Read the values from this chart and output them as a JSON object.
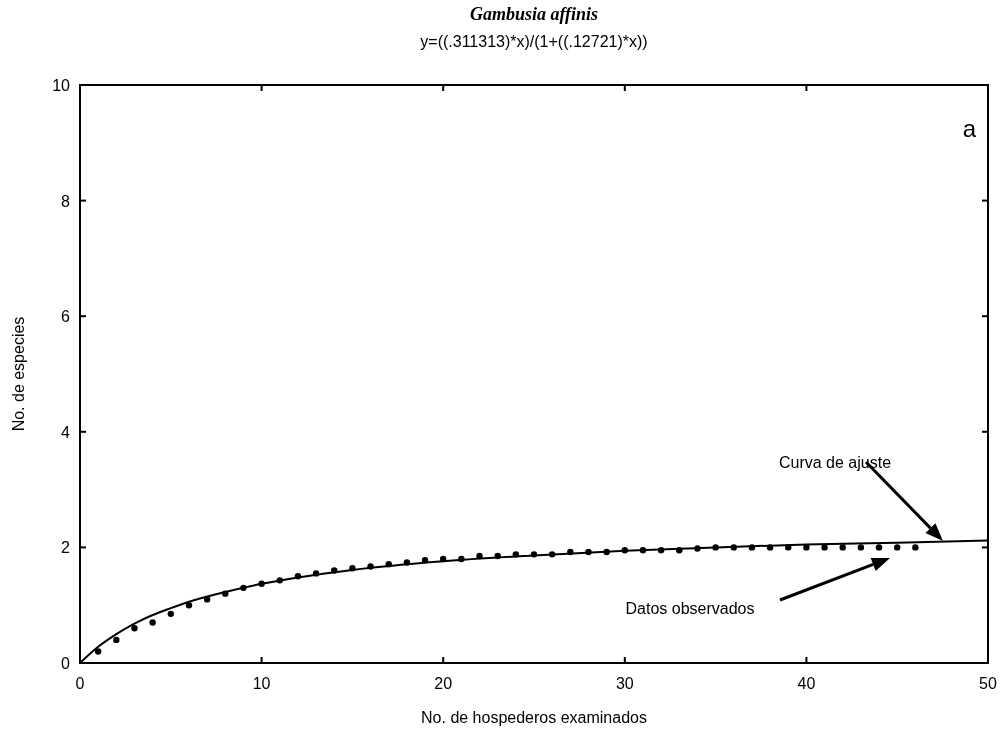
{
  "chart_data": {
    "type": "scatter",
    "title": "Gambusia affinis",
    "subtitle": "y=((.311313)*x)/(1+((.12721)*x))",
    "xlabel": "No. de hospederos examinados",
    "ylabel": "No. de especies",
    "xlim": [
      0,
      50
    ],
    "xticks": [
      0,
      10,
      20,
      30,
      40,
      50
    ],
    "ylim": [
      0,
      10
    ],
    "yticks": [
      0,
      2,
      4,
      6,
      8,
      10
    ],
    "grid": false,
    "series": [
      {
        "color": "#000000",
        "marker": "circle",
        "x": [
          1,
          2,
          3,
          4,
          5,
          6,
          7,
          8,
          9,
          10,
          11,
          12,
          13,
          14,
          15,
          16,
          17,
          18,
          19,
          20,
          21,
          22,
          23,
          24,
          25,
          26,
          27,
          28,
          29,
          30,
          31,
          32,
          33,
          34,
          35,
          36,
          37,
          38,
          39,
          40,
          41,
          42,
          43,
          44,
          45,
          46
        ],
        "values": [
          0.2,
          0.4,
          0.6,
          0.7,
          0.85,
          1.0,
          1.1,
          1.2,
          1.3,
          1.37,
          1.43,
          1.5,
          1.55,
          1.6,
          1.64,
          1.67,
          1.71,
          1.74,
          1.78,
          1.8,
          1.8,
          1.85,
          1.85,
          1.88,
          1.88,
          1.88,
          1.92,
          1.92,
          1.92,
          1.95,
          1.95,
          1.95,
          1.95,
          1.98,
          2.0,
          2.0,
          2.0,
          2.0,
          2.0,
          2.0,
          2.0,
          2.0,
          2.0,
          2.0,
          2.0,
          2.0
        ]
      },
      {
        "type": "line",
        "color": "#000000",
        "marker": "none",
        "line_style": "solid",
        "x": [
          0,
          1,
          2,
          3,
          4,
          5,
          6,
          8,
          10,
          12,
          15,
          20,
          25,
          30,
          35,
          40,
          45,
          50
        ],
        "values": [
          0,
          0.28,
          0.5,
          0.68,
          0.83,
          0.95,
          1.06,
          1.23,
          1.37,
          1.48,
          1.61,
          1.76,
          1.86,
          1.94,
          2.0,
          2.05,
          2.08,
          2.12
        ]
      }
    ],
    "annotations": [
      "a",
      "Curva de ajuste",
      "Datos observados"
    ]
  }
}
